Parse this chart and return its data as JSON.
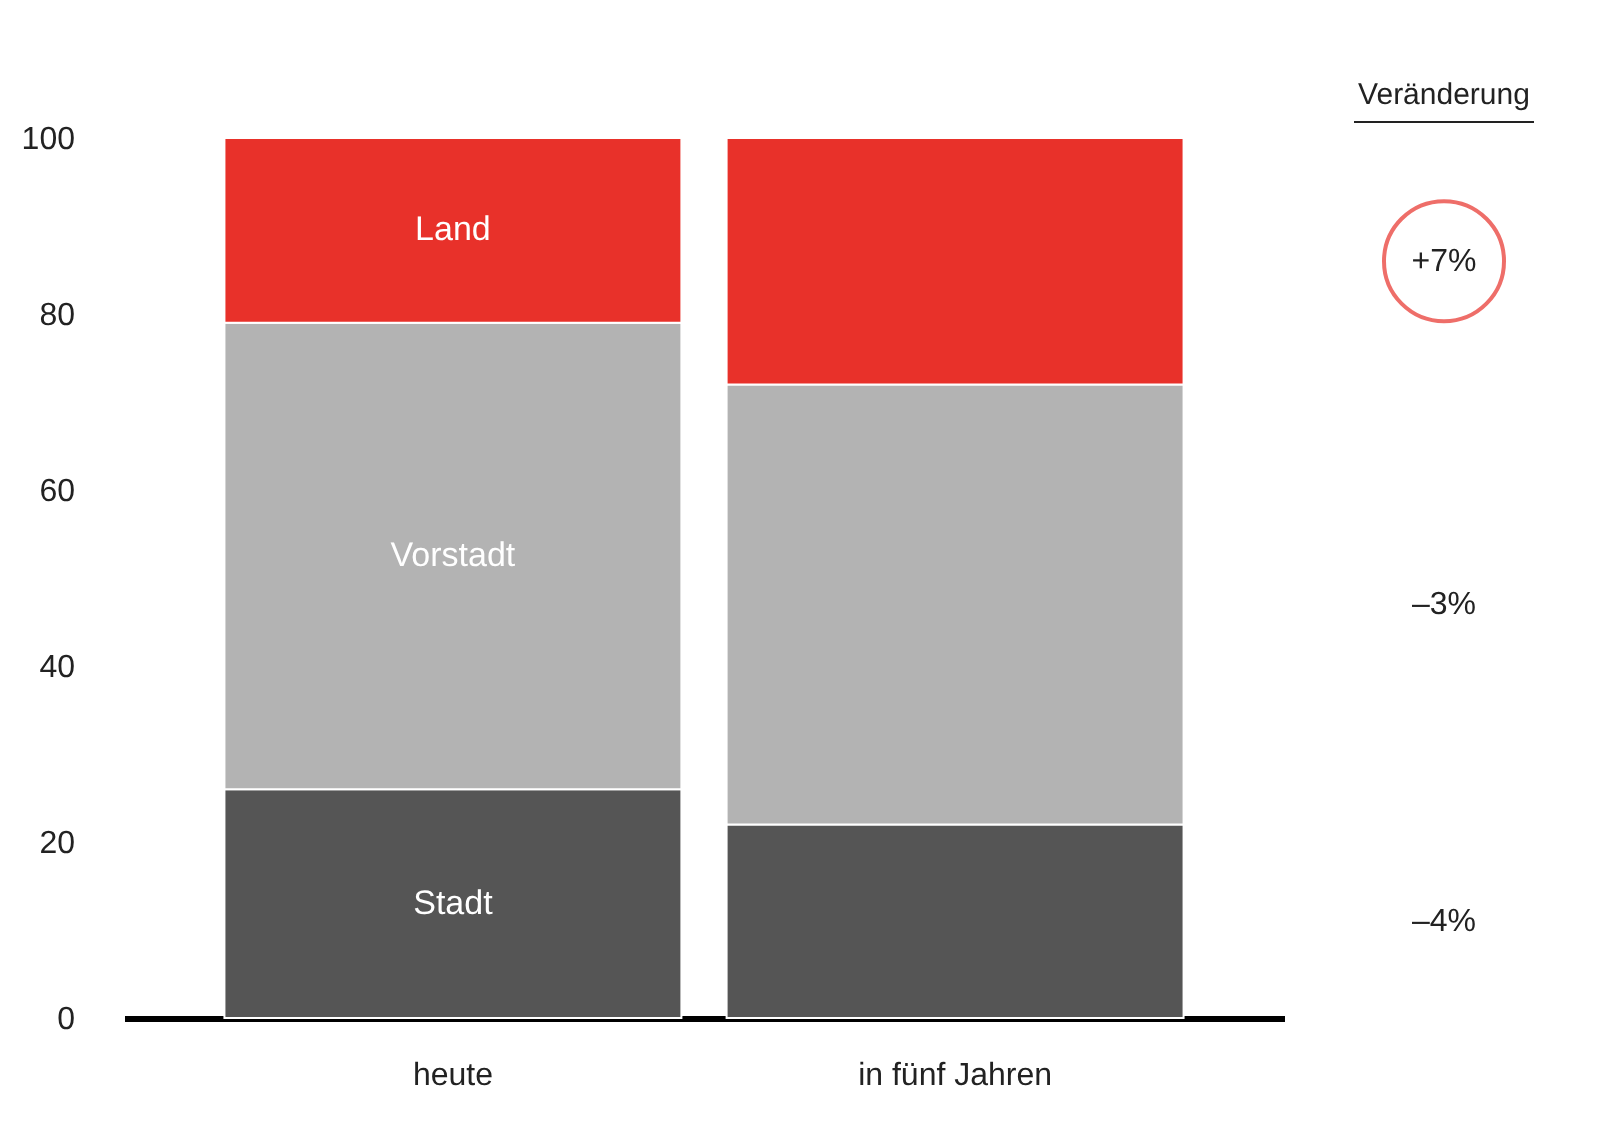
{
  "chart_data": {
    "type": "bar",
    "stacked": true,
    "categories": [
      "heute",
      "in fünf Jahren"
    ],
    "series": [
      {
        "name": "Stadt",
        "color": "#555555",
        "values": [
          26,
          22
        ]
      },
      {
        "name": "Vorstadt",
        "color": "#b3b3b3",
        "values": [
          53,
          50
        ]
      },
      {
        "name": "Land",
        "color": "#e8312a",
        "values": [
          21,
          28
        ]
      }
    ],
    "ylim": [
      0,
      100
    ],
    "yticks": [
      0,
      20,
      40,
      60,
      80,
      100
    ],
    "grid": false,
    "legend": false,
    "annotations": [
      "Veränderung",
      "+7%",
      "–3%",
      "–4%"
    ]
  }
}
